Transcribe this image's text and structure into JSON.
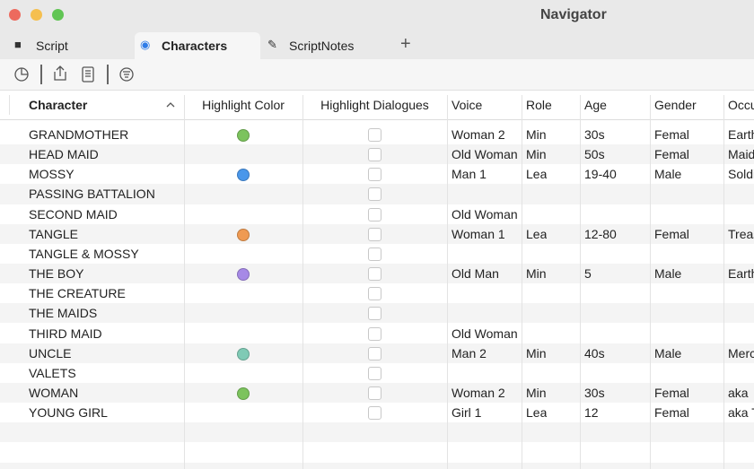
{
  "window": {
    "title": "Navigator"
  },
  "tabs": [
    {
      "label": "Script",
      "selected": false
    },
    {
      "label": "Characters",
      "selected": true
    },
    {
      "label": "ScriptNotes",
      "selected": false
    }
  ],
  "table": {
    "columns": [
      "Character",
      "Highlight Color",
      "Highlight Dialogues",
      "Voice",
      "Role",
      "Age",
      "Gender",
      "Occu"
    ],
    "sort_column": 0,
    "rows": [
      {
        "character": "GRANDMOTHER",
        "highlight_color": "#7cc35d",
        "highlight_dialogues": false,
        "voice": "Woman 2",
        "role": "Min",
        "age": "30s",
        "gender": "Femal",
        "occupation": "Earth"
      },
      {
        "character": "HEAD MAID",
        "highlight_color": null,
        "highlight_dialogues": false,
        "voice": "Old Woman",
        "role": "Min",
        "age": "50s",
        "gender": "Femal",
        "occupation": "Maid"
      },
      {
        "character": "MOSSY",
        "highlight_color": "#4a97ea",
        "highlight_dialogues": false,
        "voice": "Man 1",
        "role": "Lea",
        "age": "19-40",
        "gender": "Male",
        "occupation": "Soldi"
      },
      {
        "character": "PASSING BATTALION",
        "highlight_color": null,
        "highlight_dialogues": false,
        "voice": null,
        "role": null,
        "age": null,
        "gender": null,
        "occupation": null
      },
      {
        "character": "SECOND MAID",
        "highlight_color": null,
        "highlight_dialogues": false,
        "voice": "Old Woman",
        "role": null,
        "age": null,
        "gender": null,
        "occupation": null
      },
      {
        "character": "TANGLE",
        "highlight_color": "#ef9a52",
        "highlight_dialogues": false,
        "voice": "Woman 1",
        "role": "Lea",
        "age": "12-80",
        "gender": "Femal",
        "occupation": "Treas"
      },
      {
        "character": "TANGLE & MOSSY",
        "highlight_color": null,
        "highlight_dialogues": false,
        "voice": null,
        "role": null,
        "age": null,
        "gender": null,
        "occupation": null
      },
      {
        "character": "THE BOY",
        "highlight_color": "#a689e6",
        "highlight_dialogues": false,
        "voice": "Old Man",
        "role": "Min",
        "age": "5",
        "gender": "Male",
        "occupation": "Earth"
      },
      {
        "character": "THE CREATURE",
        "highlight_color": null,
        "highlight_dialogues": false,
        "voice": null,
        "role": null,
        "age": null,
        "gender": null,
        "occupation": null
      },
      {
        "character": "THE MAIDS",
        "highlight_color": null,
        "highlight_dialogues": false,
        "voice": null,
        "role": null,
        "age": null,
        "gender": null,
        "occupation": null
      },
      {
        "character": "THIRD MAID",
        "highlight_color": null,
        "highlight_dialogues": false,
        "voice": "Old Woman",
        "role": null,
        "age": null,
        "gender": null,
        "occupation": null
      },
      {
        "character": "UNCLE",
        "highlight_color": "#7fcab5",
        "highlight_dialogues": false,
        "voice": "Man 2",
        "role": "Min",
        "age": "40s",
        "gender": "Male",
        "occupation": "Merc"
      },
      {
        "character": "VALETS",
        "highlight_color": null,
        "highlight_dialogues": false,
        "voice": null,
        "role": null,
        "age": null,
        "gender": null,
        "occupation": null
      },
      {
        "character": "WOMAN",
        "highlight_color": "#7cc35d",
        "highlight_dialogues": false,
        "voice": "Woman 2",
        "role": "Min",
        "age": "30s",
        "gender": "Femal",
        "occupation": "aka"
      },
      {
        "character": "YOUNG GIRL",
        "highlight_color": null,
        "highlight_dialogues": false,
        "voice": "Girl 1",
        "role": "Lea",
        "age": "12",
        "gender": "Femal",
        "occupation": "aka T"
      }
    ]
  }
}
